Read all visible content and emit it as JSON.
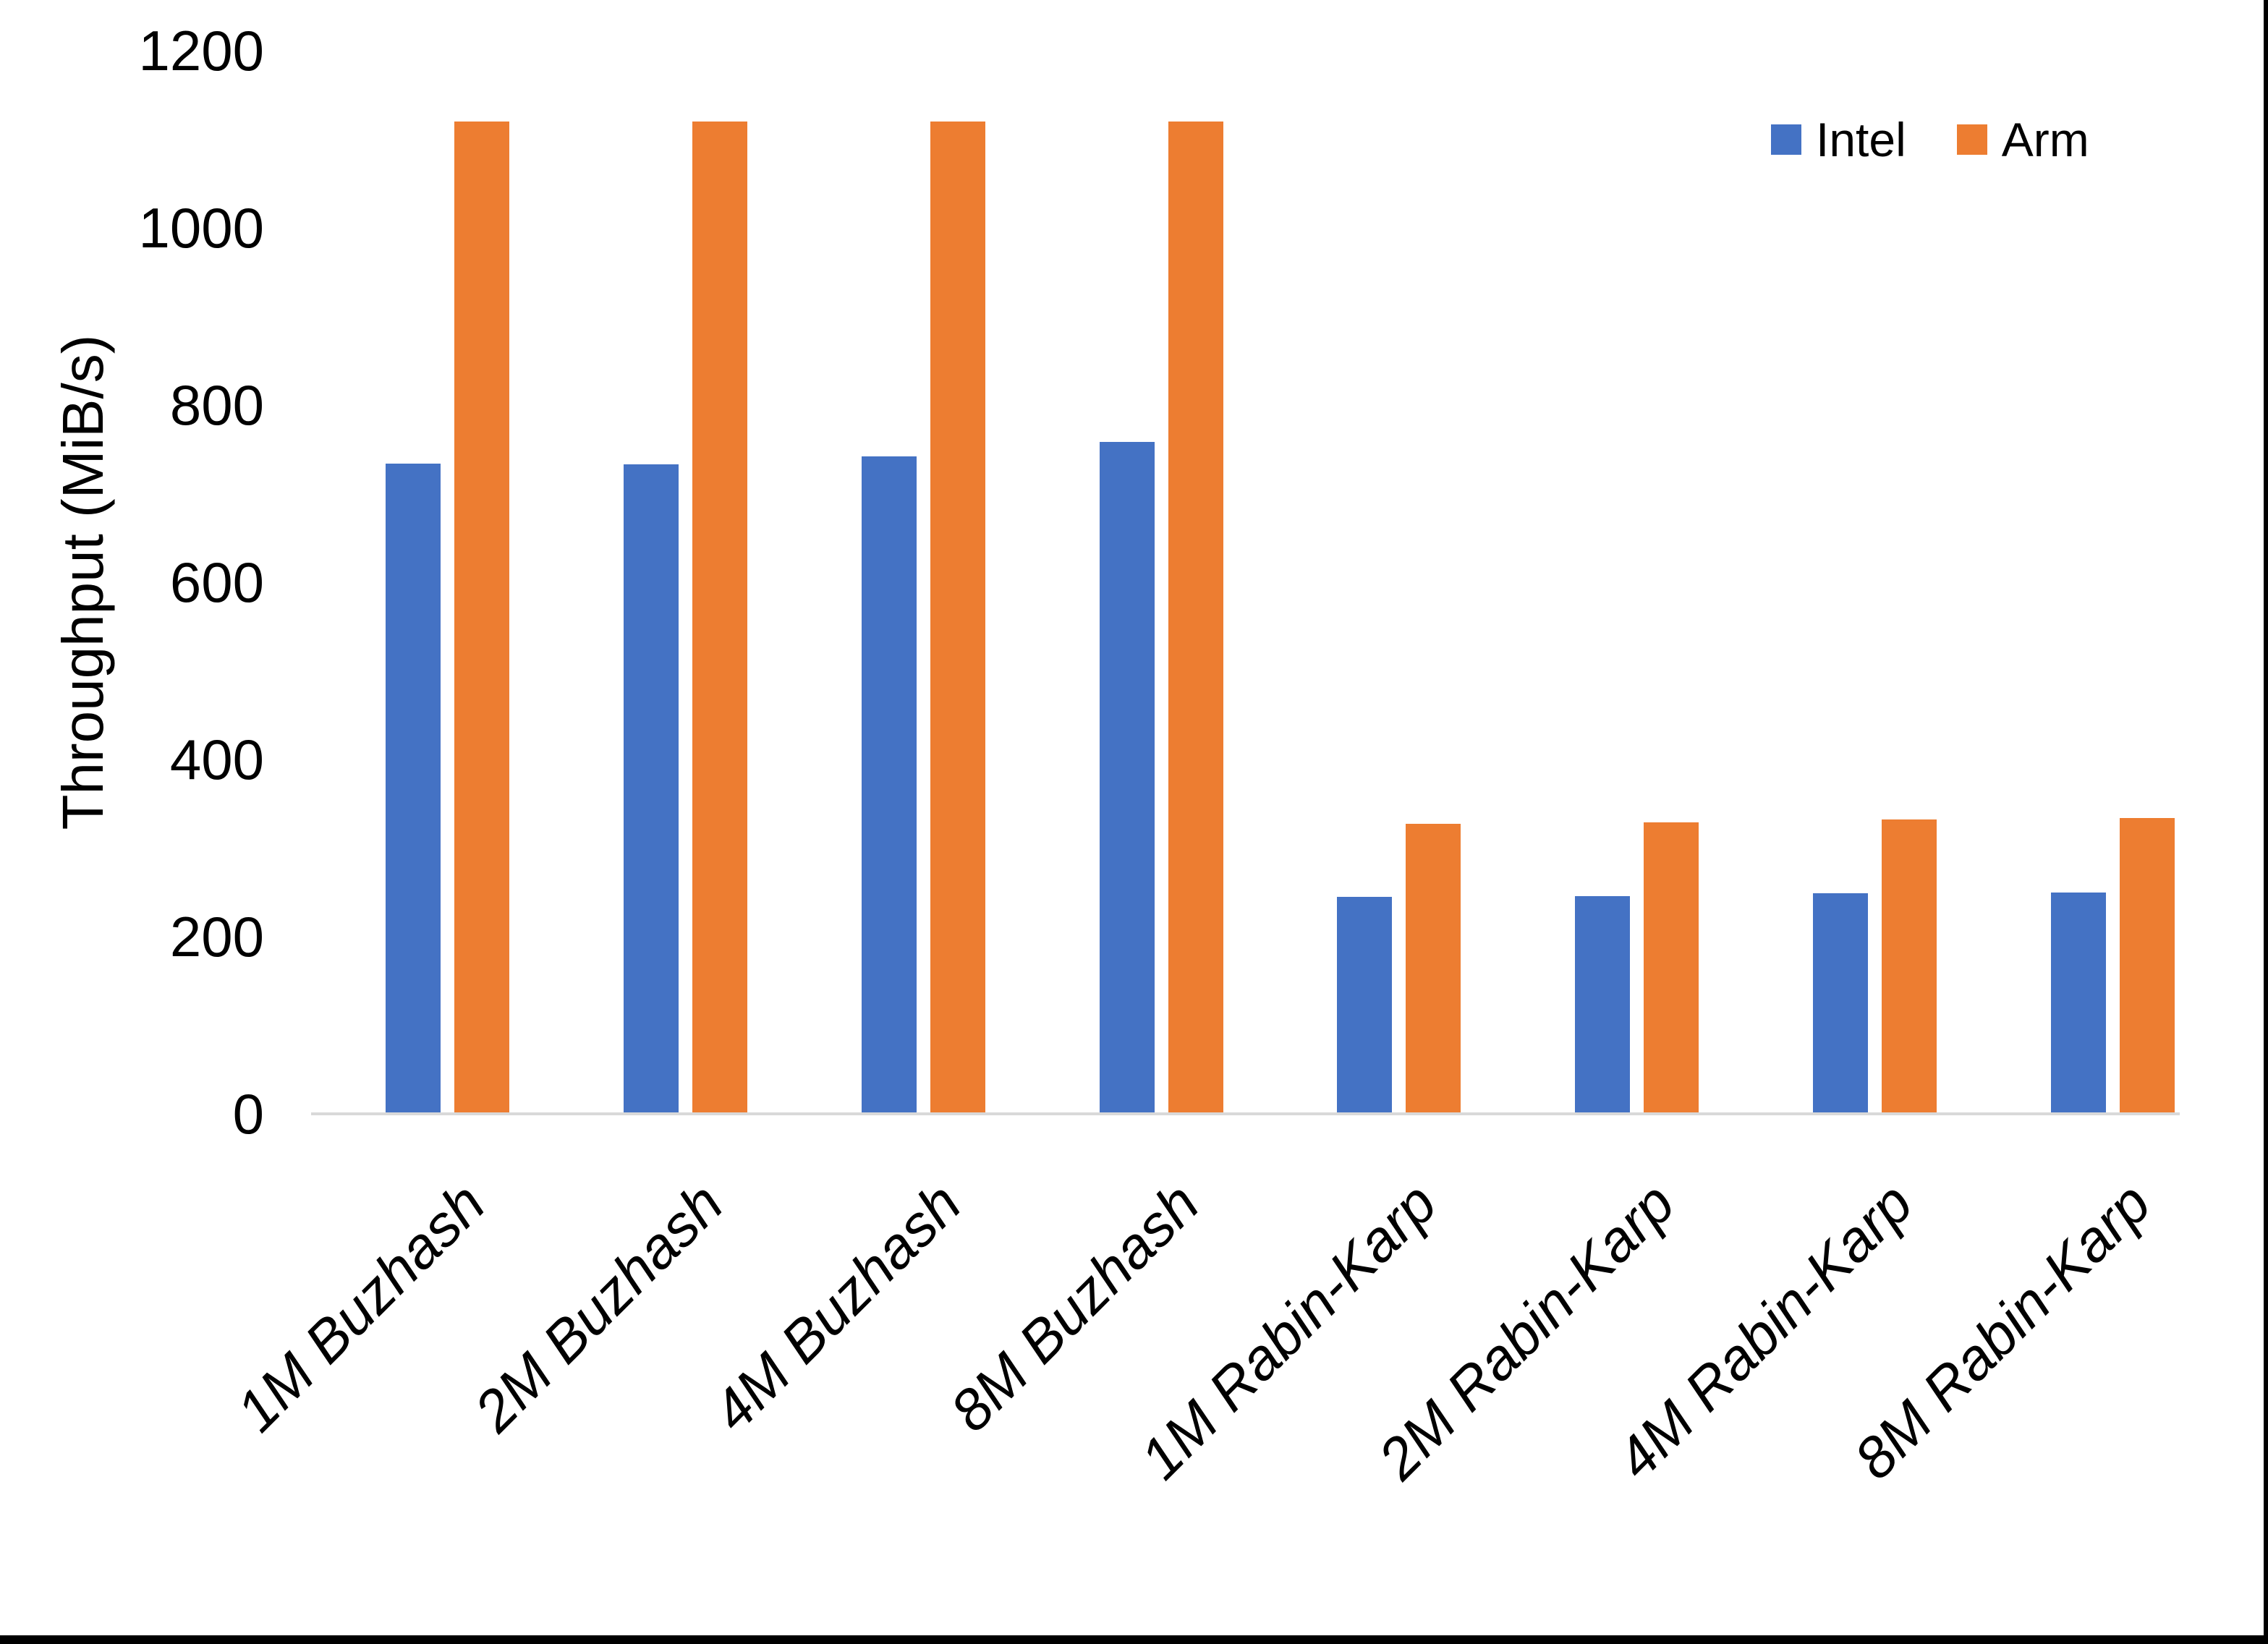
{
  "chart_data": {
    "type": "bar",
    "title": "",
    "xlabel": "",
    "ylabel": "Throughput (MiB/s)",
    "categories": [
      "1M Buzhash",
      "2M Buzhash",
      "4M Buzhash",
      "8M Buzhash",
      "1M Rabin-Karp",
      "2M Rabin-Karp",
      "4M Rabin-Karp",
      "8M Rabin-Karp"
    ],
    "series": [
      {
        "name": "Intel",
        "color": "#4472C4",
        "values": [
          734,
          733,
          742,
          758,
          245,
          246,
          249,
          250
        ]
      },
      {
        "name": "Arm",
        "color": "#ED7D31",
        "values": [
          1120,
          1120,
          1120,
          1120,
          327,
          329,
          332,
          334
        ]
      }
    ],
    "y_ticks": [
      0,
      200,
      400,
      600,
      800,
      1000,
      1200
    ],
    "ylim": [
      0,
      1200
    ],
    "grid": false,
    "legend_position": "top-right"
  },
  "colors": {
    "axis_line": "#D9D9D9",
    "text": "#000000",
    "frame": "#000000",
    "background": "#FFFFFF"
  }
}
